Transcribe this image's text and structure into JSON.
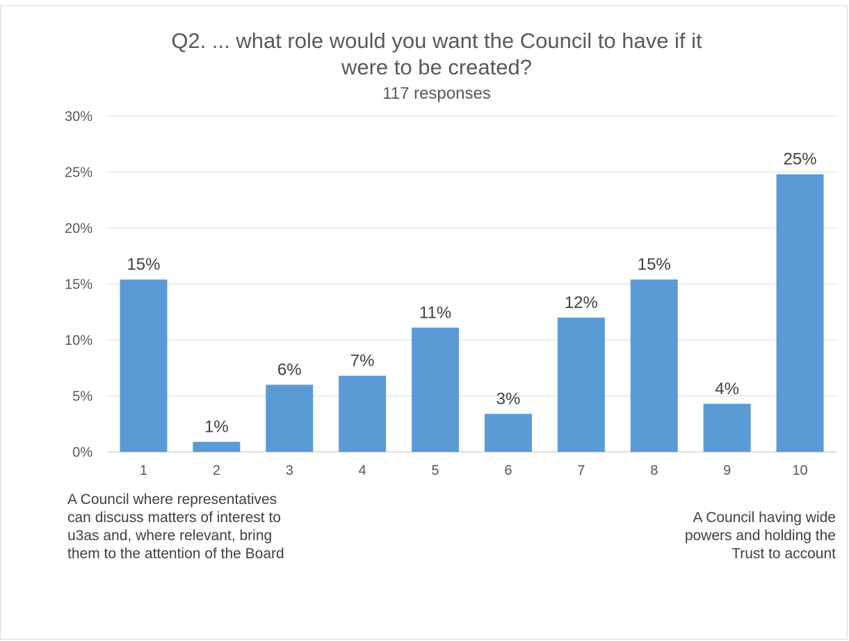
{
  "chart_data": {
    "type": "bar",
    "title_line1": "Q2. ... what role would you want the Council to have if it",
    "title_line2": "were to be created?",
    "subtitle": "117 responses",
    "categories": [
      "1",
      "2",
      "3",
      "4",
      "5",
      "6",
      "7",
      "8",
      "9",
      "10"
    ],
    "values": [
      15.4,
      0.9,
      6.0,
      6.8,
      11.1,
      3.4,
      12.0,
      15.4,
      4.3,
      24.8
    ],
    "data_labels": [
      "15%",
      "1%",
      "6%",
      "7%",
      "11%",
      "3%",
      "12%",
      "15%",
      "4%",
      "25%"
    ],
    "ylim": [
      0,
      30
    ],
    "yticks": [
      0,
      5,
      10,
      15,
      20,
      25,
      30
    ],
    "ytick_labels": [
      "0%",
      "5%",
      "10%",
      "15%",
      "20%",
      "25%",
      "30%"
    ],
    "grid": true,
    "bar_color": "#5b9bd5",
    "annotations": {
      "left": "A Council where representatives can discuss matters of interest to u3as and, where relevant, bring them to the attention of the Board",
      "right": "A Council having wide powers and holding the Trust to account"
    }
  }
}
